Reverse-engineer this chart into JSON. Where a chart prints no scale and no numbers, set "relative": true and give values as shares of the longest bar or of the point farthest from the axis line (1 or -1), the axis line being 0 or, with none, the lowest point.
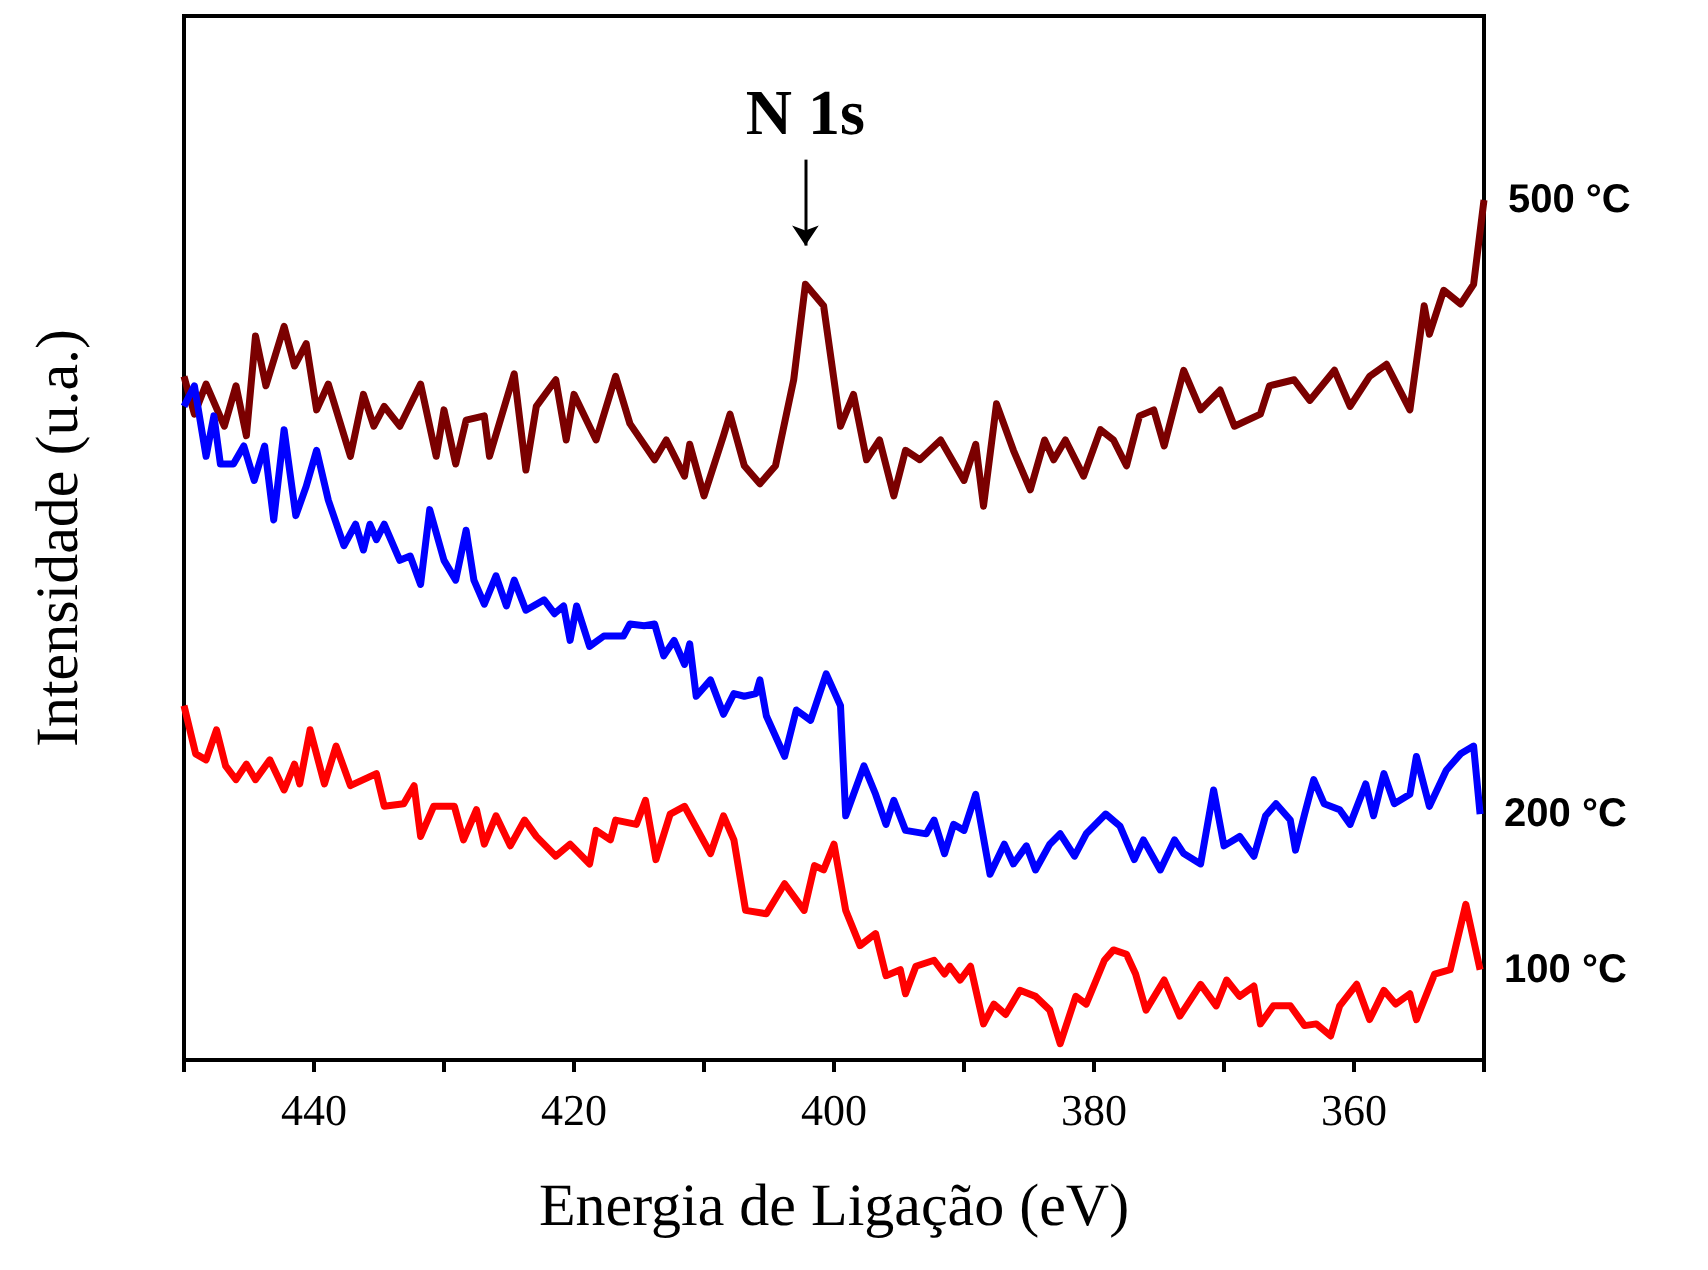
{
  "chart_data": {
    "type": "line",
    "relative": true,
    "xlabel": "Energia de Ligação (eV)",
    "ylabel": "Intensidade (u.a.)",
    "xlim": [
      450,
      350
    ],
    "xticks": [
      {
        "value": 450,
        "label": null
      },
      440,
      {
        "value": 430,
        "label": null
      },
      420,
      {
        "value": 410,
        "label": null
      },
      400,
      {
        "value": 390,
        "label": null
      },
      380,
      {
        "value": 370,
        "label": null
      },
      360,
      {
        "value": 350,
        "label": null
      }
    ],
    "tick_labels": "x",
    "grid": false,
    "legend": false,
    "marker": "none",
    "line_style": "solid",
    "annotations": [
      "N 1s"
    ],
    "series": [
      {
        "name": "500 °C",
        "color": "#7b0000",
        "x": [
          450.0,
          449.2,
          448.3,
          446.9,
          446.0,
          445.2,
          444.5,
          443.7,
          442.3,
          441.5,
          440.6,
          439.8,
          438.9,
          437.2,
          436.2,
          435.4,
          434.6,
          433.4,
          431.8,
          430.6,
          430.0,
          429.1,
          428.3,
          426.9,
          426.5,
          424.6,
          423.7,
          422.9,
          421.4,
          420.6,
          420.0,
          418.3,
          416.8,
          415.7,
          413.8,
          412.9,
          411.5,
          411.1,
          410.0,
          408.5,
          408.0,
          406.9,
          405.7,
          404.5,
          403.1,
          402.2,
          400.8,
          399.5,
          398.5,
          397.5,
          396.5,
          395.4,
          394.5,
          393.4,
          391.8,
          390.0,
          389.1,
          388.5,
          387.5,
          386.2,
          384.9,
          383.8,
          383.1,
          382.2,
          380.8,
          379.5,
          378.5,
          377.5,
          376.5,
          375.4,
          374.6,
          373.1,
          371.8,
          370.3,
          369.2,
          367.2,
          366.5,
          364.6,
          363.4,
          361.5,
          360.3,
          358.8,
          357.5,
          355.7,
          354.6,
          354.2,
          353.1,
          351.8,
          350.8,
          350.0
        ],
        "values": [
          0.795,
          0.751,
          0.786,
          0.737,
          0.784,
          0.726,
          0.842,
          0.784,
          0.853,
          0.807,
          0.833,
          0.756,
          0.786,
          0.702,
          0.774,
          0.737,
          0.76,
          0.737,
          0.786,
          0.702,
          0.756,
          0.693,
          0.744,
          0.749,
          0.702,
          0.798,
          0.686,
          0.76,
          0.791,
          0.721,
          0.774,
          0.721,
          0.795,
          0.74,
          0.698,
          0.721,
          0.679,
          0.716,
          0.656,
          0.726,
          0.751,
          0.691,
          0.67,
          0.691,
          0.791,
          0.902,
          0.877,
          0.737,
          0.774,
          0.698,
          0.721,
          0.656,
          0.709,
          0.698,
          0.721,
          0.674,
          0.716,
          0.644,
          0.763,
          0.709,
          0.663,
          0.721,
          0.698,
          0.721,
          0.679,
          0.733,
          0.721,
          0.691,
          0.749,
          0.756,
          0.714,
          0.802,
          0.756,
          0.779,
          0.737,
          0.751,
          0.784,
          0.791,
          0.767,
          0.802,
          0.76,
          0.795,
          0.809,
          0.756,
          0.877,
          0.844,
          0.895,
          0.879,
          0.902,
          1
        ]
      },
      {
        "name": "200 °C",
        "color": "#0000ff",
        "x": [
          450.0,
          449.2,
          448.3,
          447.7,
          447.2,
          446.2,
          445.4,
          444.6,
          443.8,
          443.1,
          442.3,
          441.4,
          440.6,
          439.8,
          438.9,
          437.7,
          436.8,
          436.2,
          435.7,
          435.2,
          434.6,
          433.4,
          432.6,
          431.8,
          431.1,
          430.0,
          429.1,
          428.3,
          427.7,
          426.9,
          426.0,
          425.2,
          424.6,
          423.7,
          422.3,
          421.5,
          420.8,
          420.3,
          419.8,
          418.8,
          417.7,
          416.2,
          415.7,
          414.6,
          413.8,
          413.1,
          412.3,
          411.5,
          411.1,
          410.6,
          409.5,
          408.5,
          407.7,
          406.9,
          406.0,
          405.7,
          405.2,
          403.8,
          402.9,
          401.8,
          400.6,
          399.5,
          399.1,
          397.7,
          396.8,
          396.0,
          395.4,
          394.5,
          392.9,
          392.3,
          391.5,
          390.8,
          390.0,
          389.1,
          388.0,
          386.9,
          386.2,
          385.2,
          384.5,
          383.4,
          382.6,
          381.5,
          380.6,
          379.1,
          378.0,
          376.9,
          376.2,
          374.9,
          373.8,
          373.1,
          371.8,
          370.8,
          370.0,
          368.8,
          367.7,
          366.8,
          366.0,
          364.9,
          364.5,
          363.8,
          363.1,
          362.3,
          361.1,
          360.3,
          359.1,
          358.5,
          357.7,
          356.9,
          355.7,
          355.2,
          354.2,
          352.9,
          351.8,
          350.8,
          350.3
        ],
        "values": [
          0.76,
          0.784,
          0.702,
          0.749,
          0.693,
          0.693,
          0.714,
          0.674,
          0.714,
          0.628,
          0.733,
          0.633,
          0.667,
          0.709,
          0.651,
          0.598,
          0.623,
          0.593,
          0.623,
          0.605,
          0.623,
          0.581,
          0.586,
          0.553,
          0.64,
          0.581,
          0.558,
          0.616,
          0.558,
          0.53,
          0.563,
          0.528,
          0.558,
          0.523,
          0.535,
          0.519,
          0.528,
          0.488,
          0.528,
          0.481,
          0.493,
          0.493,
          0.507,
          0.505,
          0.507,
          0.47,
          0.488,
          0.46,
          0.484,
          0.423,
          0.442,
          0.402,
          0.426,
          0.423,
          0.426,
          0.442,
          0.4,
          0.353,
          0.407,
          0.395,
          0.449,
          0.412,
          0.284,
          0.342,
          0.309,
          0.274,
          0.302,
          0.267,
          0.263,
          0.279,
          0.24,
          0.274,
          0.267,
          0.309,
          0.216,
          0.251,
          0.228,
          0.249,
          0.221,
          0.251,
          0.263,
          0.237,
          0.263,
          0.286,
          0.272,
          0.233,
          0.256,
          0.221,
          0.256,
          0.24,
          0.228,
          0.314,
          0.249,
          0.26,
          0.237,
          0.284,
          0.298,
          0.279,
          0.244,
          0.286,
          0.326,
          0.298,
          0.291,
          0.274,
          0.321,
          0.284,
          0.333,
          0.298,
          0.309,
          0.353,
          0.295,
          0.337,
          0.356,
          0.365,
          0.286
        ]
      },
      {
        "name": "100 °C",
        "color": "#ff0000",
        "x": [
          450.0,
          449.1,
          448.3,
          447.5,
          446.8,
          446.0,
          445.2,
          444.5,
          443.4,
          442.3,
          441.5,
          441.1,
          440.3,
          439.2,
          438.3,
          437.2,
          435.2,
          434.6,
          433.1,
          432.3,
          431.8,
          430.8,
          429.2,
          428.5,
          427.5,
          426.9,
          426.0,
          424.9,
          423.8,
          422.9,
          421.4,
          420.3,
          418.8,
          418.3,
          417.2,
          416.8,
          415.2,
          414.5,
          413.7,
          412.6,
          411.5,
          409.5,
          408.5,
          407.7,
          406.8,
          405.2,
          403.8,
          402.3,
          401.5,
          400.8,
          400.0,
          399.1,
          398.0,
          396.8,
          396.0,
          394.9,
          394.5,
          393.7,
          392.3,
          391.5,
          391.1,
          390.3,
          389.5,
          388.5,
          387.7,
          386.8,
          385.7,
          384.5,
          383.4,
          382.6,
          381.4,
          380.6,
          379.2,
          378.5,
          377.5,
          376.8,
          376.0,
          374.6,
          373.4,
          371.8,
          370.6,
          369.8,
          368.8,
          367.7,
          367.2,
          366.2,
          364.9,
          363.8,
          362.9,
          361.8,
          361.1,
          359.8,
          358.8,
          357.7,
          356.8,
          355.7,
          355.2,
          353.8,
          352.6,
          351.4,
          350.3
        ],
        "values": [
          0.412,
          0.356,
          0.349,
          0.384,
          0.342,
          0.326,
          0.344,
          0.326,
          0.349,
          0.314,
          0.344,
          0.321,
          0.384,
          0.321,
          0.365,
          0.319,
          0.333,
          0.295,
          0.298,
          0.319,
          0.26,
          0.295,
          0.295,
          0.256,
          0.291,
          0.251,
          0.284,
          0.249,
          0.279,
          0.26,
          0.237,
          0.251,
          0.228,
          0.267,
          0.256,
          0.279,
          0.274,
          0.302,
          0.233,
          0.286,
          0.295,
          0.24,
          0.284,
          0.256,
          0.174,
          0.17,
          0.205,
          0.174,
          0.226,
          0.221,
          0.251,
          0.174,
          0.133,
          0.147,
          0.098,
          0.105,
          0.077,
          0.109,
          0.116,
          0.1,
          0.109,
          0.093,
          0.109,
          0.042,
          0.065,
          0.053,
          0.081,
          0.074,
          0.058,
          0.019,
          0.074,
          0.065,
          0.116,
          0.128,
          0.123,
          0.1,
          0.058,
          0.093,
          0.051,
          0.088,
          0.063,
          0.093,
          0.074,
          0.086,
          0.042,
          0.063,
          0.063,
          0.04,
          0.042,
          0.028,
          0.063,
          0.088,
          0.047,
          0.081,
          0.065,
          0.077,
          0.047,
          0.1,
          0.105,
          0.181,
          0.105
        ]
      }
    ]
  }
}
